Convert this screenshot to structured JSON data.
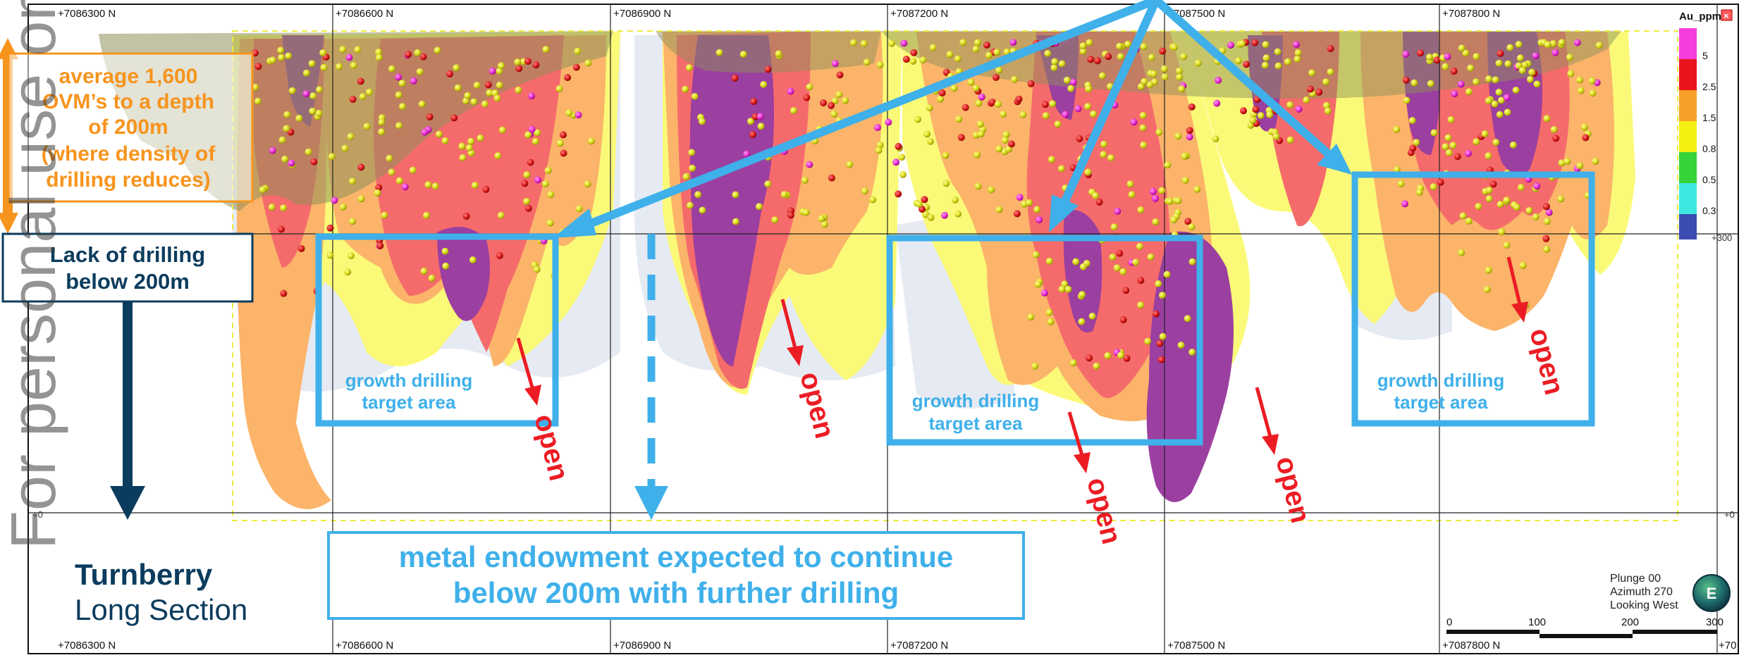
{
  "easting_labels": [
    "+7086300 N",
    "+7086600 N",
    "+7086900 N",
    "+7087200 N",
    "+7087500 N",
    "+7087800 N"
  ],
  "bottom_labels": [
    "+7086300 N",
    "+7086600 N",
    "+7086900 N",
    "+7087200 N",
    "+7087500 N",
    "+7087800 N",
    "+70"
  ],
  "rl_labels": {
    "rl_300": "+300",
    "rl_0_left": "+0",
    "rl_0_right": "+0"
  },
  "legend": {
    "title": "Au_ppm",
    "entries": [
      {
        "value": "5",
        "color": "#f53ddc"
      },
      {
        "value": "2.5",
        "color": "#e8141c"
      },
      {
        "value": "1.5",
        "color": "#f7a02a"
      },
      {
        "value": "0.8",
        "color": "#f4f012"
      },
      {
        "value": "0.5",
        "color": "#38d33a"
      },
      {
        "value": "0.3",
        "color": "#3ee8e0"
      },
      {
        "value": "",
        "color": "#3b4bb0"
      }
    ]
  },
  "view_info": {
    "plunge": "Plunge 00",
    "azimuth": "Azimuth 270",
    "looking": "Looking West",
    "badge": "E"
  },
  "scale_bar": {
    "labels": [
      "0",
      "100",
      "200",
      "300"
    ]
  },
  "annotations": {
    "orange_box_lines": [
      "average 1,600",
      "OVM’s to a depth",
      "of 200m",
      "(where density of",
      "drilling reduces)"
    ],
    "lack_box_lines": [
      "Lack of drilling",
      "below 200m"
    ],
    "growth_label_lines": [
      "growth drilling",
      "target area"
    ],
    "open_label": "open",
    "metal_box_lines": [
      "metal endowment expected to continue",
      "below 200m with further drilling"
    ],
    "title_lines": [
      "Turnberry",
      "Long Section"
    ],
    "watermark": "For personal use only"
  },
  "colors": {
    "accent_blue": "#3fb0ea",
    "navy": "#0b3c5d",
    "orange": "#f7941d",
    "red": "#ec1c24",
    "grade_purple": "#9b3fa0",
    "grade_red": "#f56b6b",
    "grade_orange": "#fbb46a",
    "grade_yellow": "#fafa78",
    "grade_pale": "#e6eaf2"
  }
}
